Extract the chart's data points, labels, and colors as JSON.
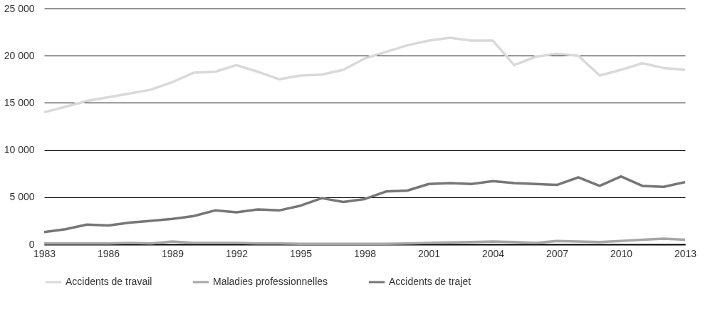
{
  "chart_data": {
    "type": "line",
    "x": [
      1983,
      1984,
      1985,
      1986,
      1987,
      1988,
      1989,
      1990,
      1991,
      1992,
      1993,
      1994,
      1995,
      1996,
      1997,
      1998,
      1999,
      2000,
      2001,
      2002,
      2003,
      2004,
      2005,
      2006,
      2007,
      2008,
      2009,
      2010,
      2011,
      2012,
      2013
    ],
    "series": [
      {
        "name": "Accidents de travail",
        "color": "#d9d9d9",
        "values": [
          14000,
          14600,
          15200,
          15600,
          16000,
          16400,
          17200,
          18200,
          18300,
          19000,
          18300,
          17500,
          17900,
          18000,
          18500,
          19700,
          20400,
          21100,
          21600,
          21900,
          21600,
          21600,
          19000,
          19900,
          20200,
          20000,
          17900,
          18500,
          19200,
          18700,
          18500
        ]
      },
      {
        "name": "Maladies professionnelles",
        "color": "#a6a6a6",
        "values": [
          100,
          100,
          100,
          100,
          150,
          100,
          300,
          150,
          150,
          150,
          100,
          100,
          50,
          50,
          50,
          50,
          50,
          100,
          150,
          200,
          250,
          300,
          250,
          150,
          350,
          300,
          250,
          350,
          500,
          600,
          500
        ]
      },
      {
        "name": "Accidents de trajet",
        "color": "#767676",
        "values": [
          1300,
          1600,
          2100,
          2000,
          2300,
          2500,
          2700,
          3000,
          3600,
          3400,
          3700,
          3600,
          4100,
          4900,
          4500,
          4800,
          5600,
          5700,
          6400,
          6500,
          6400,
          6700,
          6500,
          6400,
          6300,
          7100,
          6200,
          7200,
          6200,
          6100,
          6600
        ]
      }
    ],
    "xlim": [
      1983,
      2013
    ],
    "xticks": [
      1983,
      1986,
      1989,
      1992,
      1995,
      1998,
      2001,
      2004,
      2007,
      2010,
      2013
    ],
    "ylim": [
      0,
      25000
    ],
    "yticks": [
      {
        "value": 0,
        "label": "0"
      },
      {
        "value": 5000,
        "label": "5 000"
      },
      {
        "value": 10000,
        "label": "10 000"
      },
      {
        "value": 15000,
        "label": "15 000"
      },
      {
        "value": 20000,
        "label": "20 000"
      },
      {
        "value": 25000,
        "label": "25 000"
      }
    ],
    "grid": "y",
    "legend": "bottom",
    "marker": "none",
    "line_style": "solid"
  }
}
